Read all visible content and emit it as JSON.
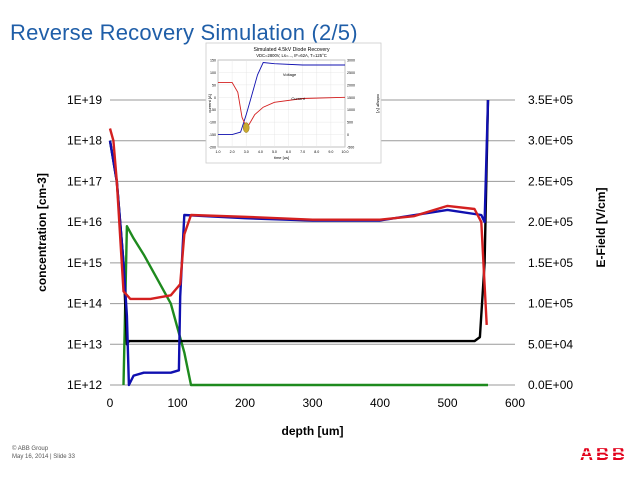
{
  "slide": {
    "title": "Reverse Recovery Simulation (2/5)",
    "footer_line1": "© ABB Group",
    "footer_line2": "May 16, 2014 | Slide 33",
    "logo_text": "ABB",
    "brand_color": "#e2001a",
    "title_color": "#1f5ea8"
  },
  "chart_data": [
    {
      "type": "line",
      "title": "",
      "xlabel": "depth [um]",
      "ylabel": "concentration [cm-3]",
      "y2label": "E-Field [V/cm]",
      "xlim": [
        0,
        600
      ],
      "ylim_log10": [
        12,
        19
      ],
      "y2lim": [
        0,
        350000
      ],
      "x_ticks": [
        "0",
        "100",
        "200",
        "300",
        "400",
        "500",
        "600"
      ],
      "y_ticks": [
        "1E+12",
        "1E+13",
        "1E+14",
        "1E+15",
        "1E+16",
        "1E+17",
        "1E+18",
        "1E+19"
      ],
      "y2_ticks": [
        "0.0E+00",
        "5.0E+04",
        "1.0E+05",
        "1.5E+05",
        "2.0E+05",
        "2.5E+05",
        "3.0E+05",
        "3.5E+05"
      ],
      "grid": "horizontal",
      "series": [
        {
          "color": "#000000",
          "axis": "left",
          "x": [
            0,
            10,
            20,
            25,
            28,
            40,
            100,
            200,
            300,
            400,
            500,
            540,
            548,
            555,
            560
          ],
          "y": [
            1e+18,
            1e+17,
            1000000000000000.0,
            10000000000000.0,
            12000000000000.0,
            12000000000000.0,
            12000000000000.0,
            12000000000000.0,
            12000000000000.0,
            12000000000000.0,
            12000000000000.0,
            12000000000000.0,
            15000000000000.0,
            1000000000000000.0,
            1e+19
          ]
        },
        {
          "color": "#1010b0",
          "axis": "left",
          "x": [
            0,
            10,
            20,
            25,
            28,
            35,
            50,
            90,
            102,
            104,
            110,
            200,
            300,
            400,
            500,
            550,
            555,
            560
          ],
          "y": [
            1e+18,
            1e+17,
            1000000000000000.0,
            50000000000000.0,
            1000000000000.0,
            1700000000000.0,
            2000000000000.0,
            2000000000000.0,
            2300000000000.0,
            150000000000000.0,
            1.5e+16,
            1.25e+16,
            1.1e+16,
            1.1e+16,
            2e+16,
            1.5e+16,
            1e+16,
            1e+19
          ]
        },
        {
          "color": "#d42020",
          "axis": "left",
          "x": [
            0,
            5,
            10,
            20,
            30,
            60,
            90,
            100,
            104,
            110,
            120,
            200,
            300,
            400,
            450,
            500,
            540,
            550,
            558
          ],
          "y": [
            2e+18,
            1e+18,
            1e+17,
            200000000000000.0,
            130000000000000.0,
            130000000000000.0,
            160000000000000.0,
            250000000000000.0,
            300000000000000.0,
            5000000000000000.0,
            1.5e+16,
            1.35e+16,
            1.15e+16,
            1.15e+16,
            1.4e+16,
            2.5e+16,
            2.1e+16,
            1e+16,
            30000000000000.0
          ]
        },
        {
          "color": "#1e8a1e",
          "axis": "right",
          "x": [
            20,
            25,
            35,
            50,
            70,
            90,
            100,
            110,
            120,
            200,
            300,
            400,
            500,
            560
          ],
          "y": [
            0,
            195000,
            180000,
            160000,
            130000,
            100000,
            70000,
            40000,
            0,
            0,
            0,
            0,
            0,
            0
          ]
        }
      ]
    },
    {
      "type": "line",
      "title": "Simulated 4.5kV Diode Recovery",
      "subtitle": "VDC=2800V, Ls=..., IF=62A, T=125°C",
      "xlabel": "time [us]",
      "ylabel": "current [A]",
      "y2label": "voltage [V]",
      "x_ticks": [
        "1.0",
        "2.0",
        "3.0",
        "4.0",
        "5.0",
        "6.0",
        "7.0",
        "8.0",
        "9.0",
        "10.0"
      ],
      "y_ticks": [
        "150",
        "100",
        "50",
        "0",
        "-50",
        "-100",
        "-150",
        "-200"
      ],
      "y2_ticks": [
        "3000",
        "2500",
        "2000",
        "1500",
        "1000",
        "500",
        "0",
        "-500"
      ],
      "annotations": [
        "Voltage",
        "Current"
      ],
      "series": [
        {
          "name": "Voltage",
          "color": "#1010b0",
          "x": [
            1.0,
            2.0,
            2.6,
            3.0,
            3.3,
            3.8,
            4.2,
            5.0,
            7.0,
            10.0
          ],
          "y": [
            0,
            0,
            100,
            800,
            1400,
            2400,
            2900,
            2850,
            2800,
            2800
          ]
        },
        {
          "name": "Current",
          "color": "#d42020",
          "x": [
            1.0,
            2.0,
            2.4,
            2.7,
            3.0,
            3.2,
            3.6,
            4.2,
            5.0,
            7.0,
            10.0
          ],
          "y": [
            60,
            60,
            20,
            -80,
            -120,
            -110,
            -70,
            -40,
            -20,
            -5,
            0
          ]
        }
      ]
    }
  ]
}
